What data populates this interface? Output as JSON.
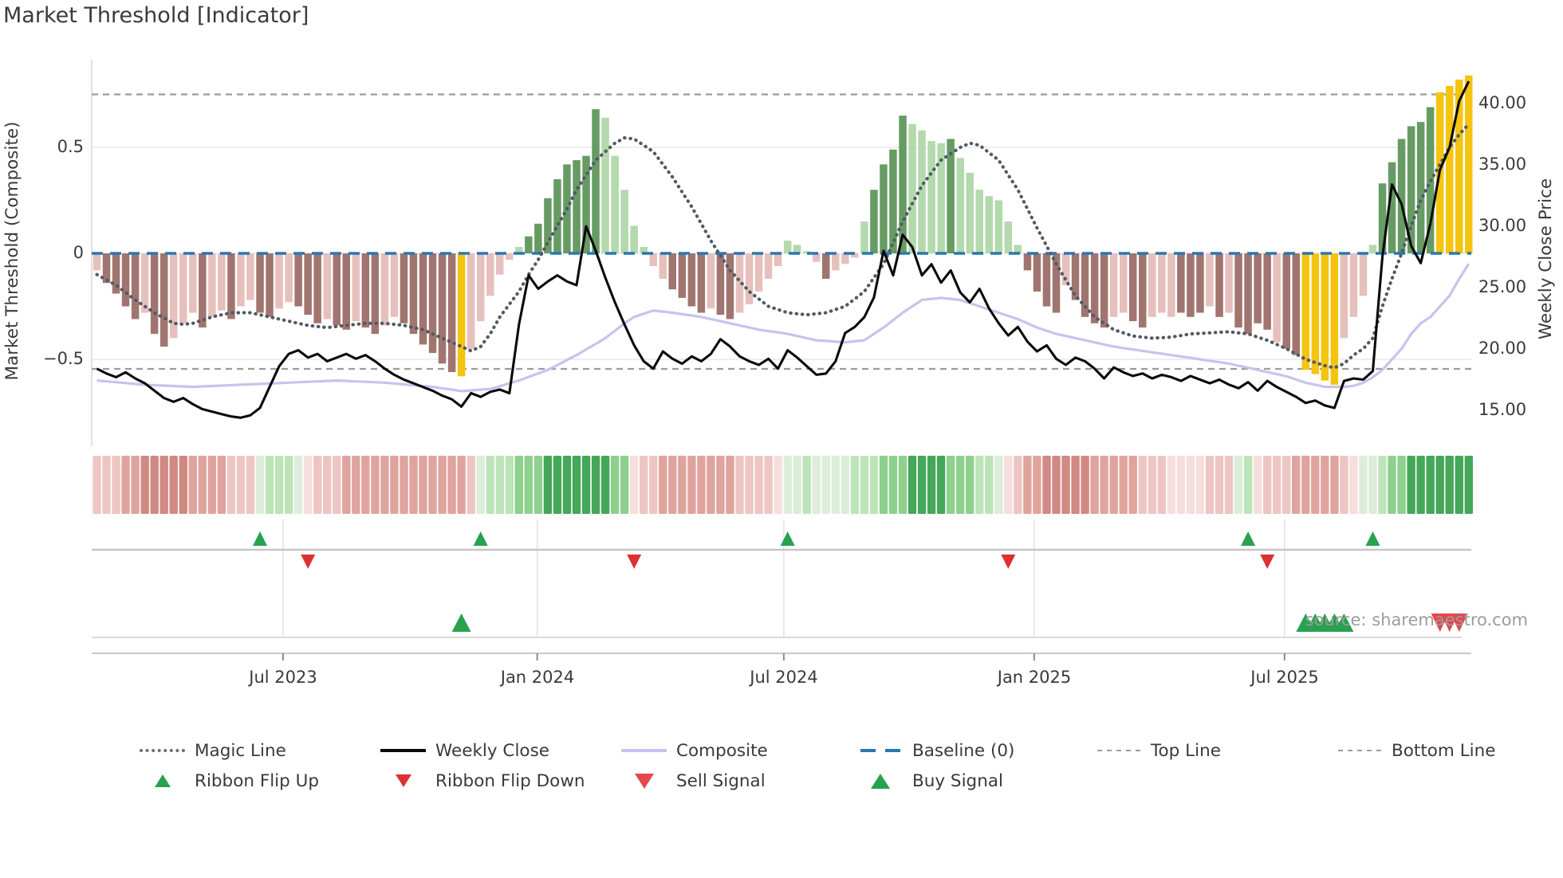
{
  "title": "Market Threshold [Indicator]",
  "source": "source: sharemaestro.com",
  "axes": {
    "left_label": "Market Threshold (Composite)",
    "right_label": "Weekly Close Price",
    "left_ticks": [
      "0.5",
      "0",
      "−0.5"
    ],
    "right_ticks": [
      "40.00",
      "35.00",
      "30.00",
      "25.00",
      "20.00",
      "15.00"
    ],
    "x_ticks": [
      "Jul 2023",
      "Jan 2024",
      "Jul 2024",
      "Jan 2025",
      "Jul 2025"
    ]
  },
  "legend": {
    "row1": [
      {
        "label": "Magic Line",
        "swatch": "dotted-gray-line"
      },
      {
        "label": "Weekly Close",
        "swatch": "solid-black-line"
      },
      {
        "label": "Composite",
        "swatch": "solid-lavender-line"
      },
      {
        "label": "Baseline (0)",
        "swatch": "dashed-blue-line"
      },
      {
        "label": "Top Line",
        "swatch": "dashed-gray-line"
      },
      {
        "label": "Bottom Line",
        "swatch": "dashed-gray-line"
      }
    ],
    "row2": [
      {
        "label": "Ribbon Flip Up",
        "swatch": "green-up-triangle"
      },
      {
        "label": "Ribbon Flip Down",
        "swatch": "red-down-triangle"
      },
      {
        "label": "Sell Signal",
        "swatch": "red-down-triangle"
      },
      {
        "label": "Buy Signal",
        "swatch": "green-up-triangle"
      }
    ]
  },
  "chart_data": {
    "type": "bar",
    "subtype": "weekly-indicator-combo",
    "title": "Market Threshold [Indicator]",
    "weeks": 144,
    "x_axis": {
      "tick_labels": [
        "Jul 2023",
        "Jan 2024",
        "Jul 2024",
        "Jan 2025",
        "Jul 2025"
      ],
      "tick_weeks": [
        19.4,
        45.9,
        71.6,
        97.7,
        123.8
      ]
    },
    "left_axis": {
      "label": "Market Threshold (Composite)",
      "ticks": [
        0.5,
        0,
        -0.5
      ],
      "range": [
        -0.91,
        0.914
      ],
      "baseline": 0,
      "top_line": 0.75,
      "bottom_line": -0.545
    },
    "right_axis": {
      "label": "Weekly Close Price",
      "ticks": [
        40,
        35,
        30,
        25,
        20,
        15
      ],
      "range": [
        12.1,
        43.6
      ]
    },
    "bars": {
      "name": "Market Threshold histogram",
      "values": [
        -0.08,
        -0.14,
        -0.19,
        -0.25,
        -0.31,
        -0.28,
        -0.38,
        -0.44,
        -0.4,
        -0.33,
        -0.28,
        -0.35,
        -0.3,
        -0.27,
        -0.31,
        -0.25,
        -0.22,
        -0.28,
        -0.3,
        -0.26,
        -0.23,
        -0.25,
        -0.29,
        -0.33,
        -0.31,
        -0.34,
        -0.36,
        -0.32,
        -0.35,
        -0.38,
        -0.34,
        -0.3,
        -0.33,
        -0.38,
        -0.43,
        -0.47,
        -0.52,
        -0.56,
        -0.58,
        -0.45,
        -0.32,
        -0.2,
        -0.1,
        -0.03,
        0.03,
        0.08,
        0.14,
        0.26,
        0.35,
        0.42,
        0.44,
        0.46,
        0.68,
        0.64,
        0.46,
        0.3,
        0.13,
        0.03,
        -0.06,
        -0.12,
        -0.17,
        -0.21,
        -0.25,
        -0.28,
        -0.26,
        -0.29,
        -0.31,
        -0.28,
        -0.24,
        -0.18,
        -0.12,
        -0.06,
        0.06,
        0.04,
        0.01,
        -0.04,
        -0.12,
        -0.08,
        -0.05,
        -0.02,
        0.15,
        0.3,
        0.42,
        0.49,
        0.65,
        0.61,
        0.58,
        0.53,
        0.52,
        0.54,
        0.45,
        0.38,
        0.3,
        0.27,
        0.25,
        0.15,
        0.04,
        -0.08,
        -0.18,
        -0.25,
        -0.28,
        -0.15,
        -0.22,
        -0.3,
        -0.33,
        -0.35,
        -0.3,
        -0.28,
        -0.32,
        -0.35,
        -0.3,
        -0.28,
        -0.3,
        -0.28,
        -0.3,
        -0.28,
        -0.25,
        -0.3,
        -0.28,
        -0.35,
        -0.38,
        -0.33,
        -0.36,
        -0.42,
        -0.45,
        -0.48,
        -0.55,
        -0.57,
        -0.6,
        -0.62,
        -0.4,
        -0.3,
        -0.2,
        0.04,
        0.33,
        0.43,
        0.54,
        0.6,
        0.62,
        0.69,
        0.76,
        0.79,
        0.82,
        0.84
      ],
      "colors": "lr dr dr dr dr lr dr dr lr lr lr dr lr lr dr lr lr dr dr lr lr dr dr dr lr dr dr lr dr dr lr lr dr dr dr dr dr dr au lr lr lr lr lr lg dg dg dg dg dg dg dg dg lg lg lg lg lg lr lr dr dr dr dr lr dr dr lr lr lr lr lr lg lg lg lr dr lr lr lr lg dg dg dg dg lg lg lg lg dg lg lg lg lg lg lg lg dr dr dr dr lr dr dr dr dr lr lr dr dr lr lr lr dr dr dr lr dr lr dr dr dr dr lr dr dr au au au au lr lr lr lg dg dg dg dg dg dg au au au au"
    },
    "weekly_close": [
      18.4,
      18.0,
      17.7,
      18.1,
      17.6,
      17.2,
      16.6,
      16.0,
      15.7,
      16.0,
      15.5,
      15.1,
      14.9,
      14.7,
      14.5,
      14.4,
      14.6,
      15.2,
      16.9,
      18.6,
      19.6,
      19.9,
      19.3,
      19.6,
      19.0,
      19.3,
      19.6,
      19.2,
      19.5,
      19.0,
      18.4,
      17.9,
      17.5,
      17.2,
      16.9,
      16.6,
      16.2,
      15.9,
      15.3,
      16.4,
      16.1,
      16.5,
      16.7,
      16.4,
      22.0,
      26.0,
      24.9,
      25.5,
      26.0,
      25.5,
      25.2,
      30.0,
      28.0,
      25.8,
      23.8,
      22.0,
      20.3,
      19.0,
      18.4,
      19.8,
      19.2,
      18.8,
      19.4,
      19.0,
      19.6,
      20.8,
      20.2,
      19.4,
      19.0,
      18.7,
      19.2,
      18.4,
      19.9,
      19.3,
      18.6,
      17.9,
      18.0,
      19.0,
      21.3,
      21.8,
      22.6,
      24.2,
      28.0,
      26.0,
      29.3,
      28.3,
      26.0,
      26.9,
      25.4,
      26.4,
      24.6,
      23.8,
      24.9,
      23.3,
      22.1,
      21.1,
      21.8,
      20.6,
      19.8,
      20.3,
      19.2,
      18.7,
      19.3,
      19.0,
      18.4,
      17.6,
      18.5,
      18.1,
      17.8,
      18.0,
      17.6,
      17.9,
      17.7,
      17.4,
      17.8,
      17.5,
      17.2,
      17.5,
      17.1,
      16.8,
      17.3,
      16.6,
      17.4,
      16.9,
      16.5,
      16.1,
      15.6,
      15.8,
      15.4,
      15.2,
      17.4,
      17.6,
      17.5,
      18.2,
      27.5,
      33.4,
      31.8,
      28.4,
      27.0,
      30.2,
      34.6,
      36.4,
      40.2,
      41.8
    ],
    "composite": [
      -0.6,
      -0.604,
      -0.608,
      -0.612,
      -0.616,
      -0.62,
      -0.622,
      -0.624,
      -0.626,
      -0.628,
      -0.63,
      -0.628,
      -0.626,
      -0.624,
      -0.622,
      -0.62,
      -0.618,
      -0.616,
      -0.614,
      -0.612,
      -0.61,
      -0.608,
      -0.606,
      -0.604,
      -0.602,
      -0.6,
      -0.602,
      -0.604,
      -0.606,
      -0.608,
      -0.61,
      -0.614,
      -0.618,
      -0.622,
      -0.626,
      -0.63,
      -0.637,
      -0.643,
      -0.65,
      -0.647,
      -0.643,
      -0.64,
      -0.627,
      -0.613,
      -0.6,
      -0.583,
      -0.567,
      -0.55,
      -0.527,
      -0.503,
      -0.48,
      -0.453,
      -0.427,
      -0.4,
      -0.365,
      -0.33,
      -0.3,
      -0.285,
      -0.27,
      -0.275,
      -0.28,
      -0.287,
      -0.293,
      -0.3,
      -0.31,
      -0.32,
      -0.33,
      -0.34,
      -0.35,
      -0.36,
      -0.367,
      -0.373,
      -0.38,
      -0.39,
      -0.4,
      -0.41,
      -0.413,
      -0.417,
      -0.42,
      -0.415,
      -0.41,
      -0.38,
      -0.35,
      -0.315,
      -0.28,
      -0.25,
      -0.22,
      -0.215,
      -0.21,
      -0.215,
      -0.22,
      -0.235,
      -0.25,
      -0.265,
      -0.28,
      -0.295,
      -0.31,
      -0.33,
      -0.35,
      -0.365,
      -0.38,
      -0.39,
      -0.4,
      -0.41,
      -0.42,
      -0.43,
      -0.44,
      -0.447,
      -0.453,
      -0.46,
      -0.467,
      -0.473,
      -0.48,
      -0.487,
      -0.493,
      -0.5,
      -0.507,
      -0.513,
      -0.52,
      -0.53,
      -0.54,
      -0.55,
      -0.56,
      -0.57,
      -0.58,
      -0.595,
      -0.61,
      -0.62,
      -0.63,
      -0.63,
      -0.63,
      -0.625,
      -0.61,
      -0.585,
      -0.55,
      -0.5,
      -0.45,
      -0.38,
      -0.33,
      -0.3,
      -0.25,
      -0.2,
      -0.12,
      -0.05
    ],
    "magic_line": [
      -0.1,
      -0.125,
      -0.15,
      -0.185,
      -0.22,
      -0.25,
      -0.28,
      -0.305,
      -0.33,
      -0.335,
      -0.33,
      -0.315,
      -0.3,
      -0.29,
      -0.28,
      -0.28,
      -0.28,
      -0.29,
      -0.3,
      -0.31,
      -0.32,
      -0.33,
      -0.34,
      -0.345,
      -0.35,
      -0.345,
      -0.34,
      -0.335,
      -0.33,
      -0.33,
      -0.33,
      -0.335,
      -0.34,
      -0.35,
      -0.36,
      -0.38,
      -0.4,
      -0.42,
      -0.44,
      -0.46,
      -0.44,
      -0.38,
      -0.3,
      -0.24,
      -0.18,
      -0.1,
      -0.03,
      0.05,
      0.13,
      0.21,
      0.3,
      0.37,
      0.44,
      0.48,
      0.52,
      0.545,
      0.54,
      0.51,
      0.48,
      0.42,
      0.36,
      0.29,
      0.22,
      0.14,
      0.06,
      -0.01,
      -0.08,
      -0.13,
      -0.18,
      -0.215,
      -0.25,
      -0.265,
      -0.28,
      -0.285,
      -0.29,
      -0.285,
      -0.28,
      -0.265,
      -0.25,
      -0.215,
      -0.18,
      -0.115,
      -0.05,
      0.05,
      0.15,
      0.235,
      0.32,
      0.38,
      0.44,
      0.47,
      0.5,
      0.52,
      0.51,
      0.475,
      0.44,
      0.37,
      0.3,
      0.21,
      0.12,
      0.035,
      -0.05,
      -0.125,
      -0.2,
      -0.25,
      -0.3,
      -0.33,
      -0.36,
      -0.375,
      -0.39,
      -0.395,
      -0.4,
      -0.398,
      -0.395,
      -0.388,
      -0.38,
      -0.378,
      -0.375,
      -0.372,
      -0.37,
      -0.375,
      -0.38,
      -0.395,
      -0.41,
      -0.43,
      -0.45,
      -0.475,
      -0.5,
      -0.515,
      -0.53,
      -0.54,
      -0.52,
      -0.48,
      -0.45,
      -0.4,
      -0.25,
      -0.12,
      0.0,
      0.13,
      0.25,
      0.34,
      0.42,
      0.5,
      0.56,
      0.61
    ],
    "ribbon": "r2 r2 r2 r3 r3 r4 r4 r4 r4 r4 r3 r3 r3 r3 r2 r2 r2 g1 g2 g2 g2 g1 r1 r2 r2 r2 r3 r3 r3 r3 r3 r3 r3 r3 r3 r3 r3 r3 r3 r2 g1 g2 g2 g2 g3 g3 g3 g4 g4 g4 g4 g4 g4 g4 g3 g3 r1 r2 r2 r3 r3 r3 r3 r3 r3 r3 r3 r2 r2 r2 r2 r1 g1 g1 g2 g1 g1 g1 g1 g2 g2 g2 g3 g3 g3 g4 g4 g4 g4 g3 g3 g3 g2 g2 g1 r1 r2 r3 r3 r4 r4 r4 r4 r4 r3 r3 r3 r3 r3 r2 r2 r2 r1 r1 r1 r1 r2 r2 r2 g1 g2 r1 r2 r2 r2 r3 r3 r3 r3 r3 r2 r1 g1 g1 g2 g3 g3 g4 g4 g4 g4 g4 g4 g4",
    "signals": {
      "ribbon_flip_up_weeks": [
        17,
        40,
        72,
        120,
        133
      ],
      "ribbon_flip_down_weeks": [
        22,
        56,
        95,
        122
      ],
      "buy_weeks": [
        38,
        126,
        127,
        128,
        129,
        130
      ],
      "sell_weeks": [
        140,
        141,
        142
      ]
    },
    "legend_position": "bottom",
    "grid": "horizontal-light",
    "colors": {
      "bar": {
        "dr": "#a1756f",
        "lr": "#e6c0bc",
        "dg": "#679b64",
        "lg": "#b3d9ac",
        "au": "#f4c411"
      },
      "ribbon": {
        "r1": "#f6dedc",
        "r2": "#edc6c3",
        "r3": "#dfa49e",
        "r4": "#d08983",
        "g1": "#dcedda",
        "g2": "#bde4b9",
        "g3": "#8ed08d",
        "g4": "#46a65a"
      },
      "baseline": "#2878ae",
      "magic": "#525a64",
      "composite": "#c9c2ee",
      "close": "#0a0a0a",
      "flip_up": "#27a24e",
      "flip_down": "#dc3131",
      "buy": "#27a24e",
      "sell": "#e4474d"
    }
  }
}
